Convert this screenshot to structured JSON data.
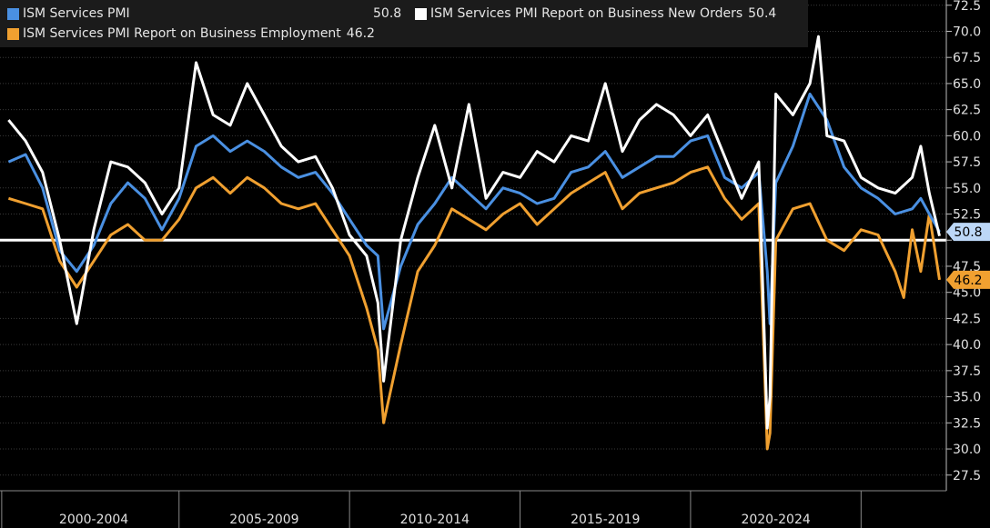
{
  "chart_data": {
    "type": "line",
    "title": "",
    "xlabel": "",
    "ylabel": "",
    "ylim": [
      26,
      73
    ],
    "xlim": [
      1997.75,
      2025.5
    ],
    "yticks": [
      27.5,
      30.0,
      32.5,
      35.0,
      37.5,
      40.0,
      42.5,
      45.0,
      47.5,
      50.0,
      52.5,
      55.0,
      57.5,
      60.0,
      62.5,
      65.0,
      67.5,
      70.0,
      72.5
    ],
    "ytick_labels": [
      "27.5",
      "30.0",
      "32.5",
      "35.0",
      "37.5",
      "40.0",
      "42.5",
      "45.0",
      "47.5",
      "",
      "52.5",
      "55.0",
      "57.5",
      "60.0",
      "62.5",
      "65.0",
      "67.5",
      "70.0",
      "72.5"
    ],
    "period_labels": [
      "2000-2004",
      "2005-2009",
      "2010-2014",
      "2015-2019",
      "2020-2024"
    ],
    "period_centers": [
      2000.5,
      2005.5,
      2010.5,
      2015.5,
      2020.5
    ],
    "period_boundaries": [
      1997.8,
      2003.0,
      2008.0,
      2013.0,
      2018.0,
      2023.0
    ],
    "reference_line": 50,
    "grid": true,
    "legend_position": "top-left",
    "series": [
      {
        "name": "ISM Services PMI",
        "color": "#4a90e2",
        "last_value": "50.8",
        "x": [
          1998.0,
          1998.5,
          1999.0,
          1999.5,
          2000.0,
          2000.5,
          2001.0,
          2001.5,
          2002.0,
          2002.5,
          2003.0,
          2003.5,
          2004.0,
          2004.5,
          2005.0,
          2005.5,
          2006.0,
          2006.5,
          2007.0,
          2007.5,
          2008.0,
          2008.5,
          2008.83,
          2009.0,
          2009.5,
          2010.0,
          2010.5,
          2011.0,
          2011.5,
          2012.0,
          2012.5,
          2013.0,
          2013.5,
          2014.0,
          2014.5,
          2015.0,
          2015.5,
          2016.0,
          2016.5,
          2017.0,
          2017.5,
          2018.0,
          2018.5,
          2019.0,
          2019.5,
          2020.0,
          2020.25,
          2020.33,
          2020.5,
          2021.0,
          2021.5,
          2022.0,
          2022.5,
          2023.0,
          2023.5,
          2024.0,
          2024.5,
          2024.75,
          2025.0,
          2025.3
        ],
        "y": [
          57.5,
          58.2,
          55.0,
          49.0,
          47.0,
          49.5,
          53.5,
          55.5,
          54.0,
          51.0,
          54.0,
          59.0,
          60.0,
          58.5,
          59.5,
          58.5,
          57.0,
          56.0,
          56.5,
          54.5,
          52.0,
          49.5,
          48.5,
          41.5,
          47.5,
          51.5,
          53.5,
          56.0,
          54.5,
          53.0,
          55.0,
          54.5,
          53.5,
          54.0,
          56.5,
          57.0,
          58.5,
          56.0,
          57.0,
          58.0,
          58.0,
          59.5,
          60.0,
          56.0,
          55.0,
          56.5,
          47.0,
          42.0,
          55.5,
          59.0,
          64.0,
          61.5,
          57.0,
          55.0,
          54.0,
          52.5,
          53.0,
          54.0,
          52.5,
          50.8
        ]
      },
      {
        "name": "ISM Services PMI Report on Business New Orders",
        "color": "#ffffff",
        "last_value": "50.4",
        "x": [
          1998.0,
          1998.5,
          1999.0,
          1999.5,
          2000.0,
          2000.5,
          2001.0,
          2001.5,
          2002.0,
          2002.5,
          2003.0,
          2003.5,
          2004.0,
          2004.5,
          2005.0,
          2005.5,
          2006.0,
          2006.5,
          2007.0,
          2007.5,
          2008.0,
          2008.5,
          2008.83,
          2009.0,
          2009.5,
          2010.0,
          2010.5,
          2011.0,
          2011.5,
          2012.0,
          2012.5,
          2013.0,
          2013.5,
          2014.0,
          2014.5,
          2015.0,
          2015.5,
          2016.0,
          2016.5,
          2017.0,
          2017.5,
          2018.0,
          2018.5,
          2019.0,
          2019.5,
          2020.0,
          2020.25,
          2020.33,
          2020.5,
          2021.0,
          2021.5,
          2021.75,
          2022.0,
          2022.5,
          2023.0,
          2023.5,
          2024.0,
          2024.5,
          2024.75,
          2025.0,
          2025.3
        ],
        "y": [
          61.5,
          59.5,
          56.5,
          50.0,
          42.0,
          51.0,
          57.5,
          57.0,
          55.5,
          52.5,
          55.0,
          67.0,
          62.0,
          61.0,
          65.0,
          62.0,
          59.0,
          57.5,
          58.0,
          55.0,
          50.5,
          48.5,
          44.0,
          36.5,
          50.0,
          56.0,
          61.0,
          55.0,
          63.0,
          54.0,
          56.5,
          56.0,
          58.5,
          57.5,
          60.0,
          59.5,
          65.0,
          58.5,
          61.5,
          63.0,
          62.0,
          60.0,
          62.0,
          58.0,
          54.0,
          57.5,
          32.0,
          35.0,
          64.0,
          62.0,
          65.0,
          69.5,
          60.0,
          59.5,
          56.0,
          55.0,
          54.5,
          56.0,
          59.0,
          54.5,
          50.4
        ]
      },
      {
        "name": "ISM Services PMI Report on Business Employment",
        "color": "#f0a030",
        "last_value": "46.2",
        "x": [
          1998.0,
          1998.5,
          1999.0,
          1999.5,
          2000.0,
          2000.5,
          2001.0,
          2001.5,
          2002.0,
          2002.5,
          2003.0,
          2003.5,
          2004.0,
          2004.5,
          2005.0,
          2005.5,
          2006.0,
          2006.5,
          2007.0,
          2007.5,
          2008.0,
          2008.5,
          2008.83,
          2009.0,
          2009.5,
          2010.0,
          2010.5,
          2011.0,
          2011.5,
          2012.0,
          2012.5,
          2013.0,
          2013.5,
          2014.0,
          2014.5,
          2015.0,
          2015.5,
          2016.0,
          2016.5,
          2017.0,
          2017.5,
          2018.0,
          2018.5,
          2019.0,
          2019.5,
          2020.0,
          2020.25,
          2020.33,
          2020.5,
          2021.0,
          2021.5,
          2022.0,
          2022.5,
          2023.0,
          2023.5,
          2024.0,
          2024.25,
          2024.5,
          2024.75,
          2025.0,
          2025.3
        ],
        "y": [
          54.0,
          53.5,
          53.0,
          48.0,
          45.5,
          48.0,
          50.5,
          51.5,
          50.0,
          50.0,
          52.0,
          55.0,
          56.0,
          54.5,
          56.0,
          55.0,
          53.5,
          53.0,
          53.5,
          51.0,
          48.5,
          43.5,
          39.5,
          32.5,
          40.0,
          47.0,
          49.5,
          53.0,
          52.0,
          51.0,
          52.5,
          53.5,
          51.5,
          53.0,
          54.5,
          55.5,
          56.5,
          53.0,
          54.5,
          55.0,
          55.5,
          56.5,
          57.0,
          54.0,
          52.0,
          53.5,
          30.0,
          31.5,
          50.0,
          53.0,
          53.5,
          50.0,
          49.0,
          51.0,
          50.5,
          47.0,
          44.5,
          51.0,
          47.0,
          52.5,
          46.2
        ]
      }
    ]
  }
}
